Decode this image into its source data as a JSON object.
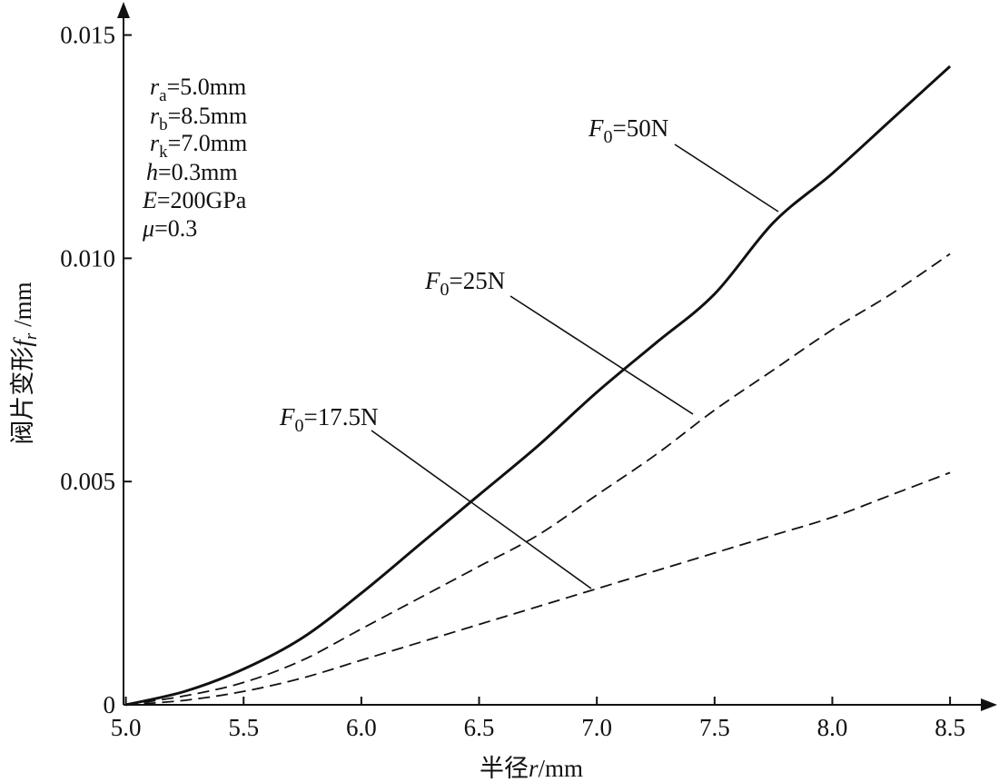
{
  "chart_data": {
    "type": "line",
    "xlabel": "半径r/mm",
    "ylabel": "阀片变形f_r /mm",
    "xlim": [
      4.99,
      8.65
    ],
    "ylim": [
      0,
      0.0155
    ],
    "x_ticks": [
      "5.0",
      "5.5",
      "6.0",
      "6.5",
      "7.0",
      "7.5",
      "8.0",
      "8.5"
    ],
    "y_ticks": [
      "0",
      "0.005",
      "0.010",
      "0.015"
    ],
    "grid": false,
    "parameters": [
      {
        "sym": "r",
        "sub": "a",
        "val": "=5.0mm"
      },
      {
        "sym": "r",
        "sub": "b",
        "val": "=8.5mm"
      },
      {
        "sym": "r",
        "sub": "k",
        "val": "=7.0mm"
      },
      {
        "sym": "h",
        "sub": "",
        "val": "=0.3mm"
      },
      {
        "sym": "E",
        "sub": "",
        "val": "=200GPa"
      },
      {
        "sym": "μ",
        "sub": "",
        "val": "=0.3"
      }
    ],
    "series": [
      {
        "name": "F0=50N",
        "label_symbol": "F",
        "label_sub": "0",
        "label_value": "=50N",
        "style": "solid",
        "x": [
          5.0,
          5.25,
          5.5,
          5.75,
          6.0,
          6.25,
          6.5,
          6.75,
          7.0,
          7.25,
          7.5,
          7.75,
          8.0,
          8.25,
          8.5
        ],
        "y": [
          0.0,
          0.0003,
          0.0008,
          0.0015,
          0.0025,
          0.0036,
          0.0047,
          0.0058,
          0.007,
          0.0081,
          0.0092,
          0.0108,
          0.0119,
          0.0131,
          0.0143
        ]
      },
      {
        "name": "F0=25N",
        "label_symbol": "F",
        "label_sub": "0",
        "label_value": "=25N",
        "style": "dashed",
        "x": [
          5.0,
          5.25,
          5.5,
          5.75,
          6.0,
          6.25,
          6.5,
          6.75,
          7.0,
          7.25,
          7.5,
          7.75,
          8.0,
          8.25,
          8.5
        ],
        "y": [
          0.0,
          0.0002,
          0.0005,
          0.001,
          0.0017,
          0.0024,
          0.0031,
          0.0038,
          0.0047,
          0.0056,
          0.0066,
          0.0075,
          0.0084,
          0.0092,
          0.0101
        ]
      },
      {
        "name": "F0=17.5N",
        "label_symbol": "F",
        "label_sub": "0",
        "label_value": "=17.5N",
        "style": "dashed",
        "x": [
          5.0,
          5.25,
          5.5,
          5.75,
          6.0,
          6.25,
          6.5,
          6.75,
          7.0,
          7.25,
          7.5,
          7.75,
          8.0,
          8.25,
          8.5
        ],
        "y": [
          0.0,
          0.0001,
          0.0003,
          0.0006,
          0.001,
          0.0014,
          0.0018,
          0.0022,
          0.0026,
          0.003,
          0.0034,
          0.0038,
          0.0042,
          0.0047,
          0.0052
        ]
      }
    ]
  }
}
